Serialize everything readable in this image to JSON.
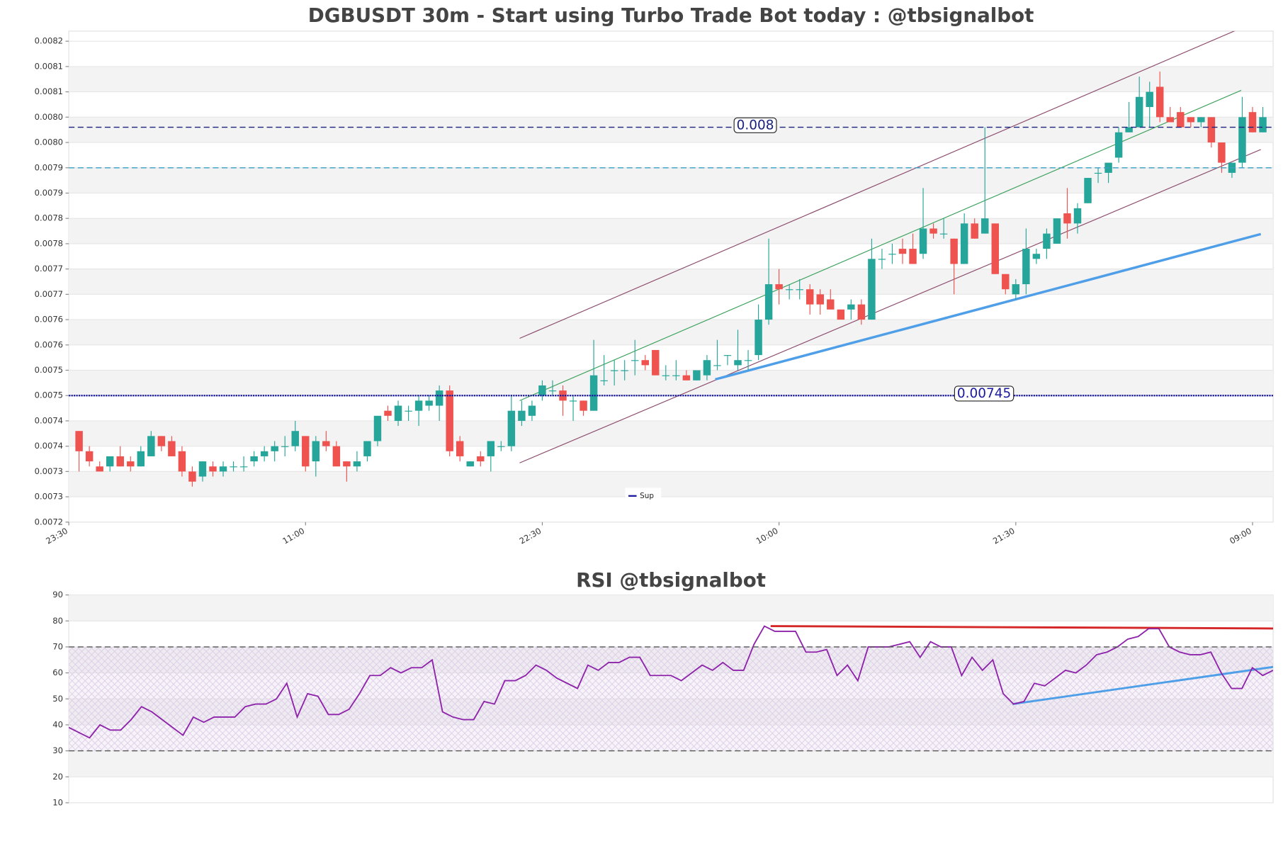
{
  "chart_data": [
    {
      "type": "candlestick",
      "title": "DGBUSDT 30m - Start using Turbo Trade Bot today : @tbsignalbot",
      "x": [
        1,
        2,
        3,
        4,
        5,
        6,
        7,
        8,
        9,
        10,
        11,
        12,
        13,
        14,
        15,
        16,
        17,
        18,
        19,
        20,
        21,
        22,
        23,
        24,
        25,
        26,
        27,
        28,
        29,
        30,
        31,
        32,
        33,
        34,
        35,
        36,
        37,
        38,
        39,
        40,
        41,
        42,
        43,
        44,
        45,
        46,
        47,
        48,
        49,
        50,
        51,
        52,
        53,
        54,
        55,
        56,
        57,
        58,
        59,
        60,
        61,
        62,
        63,
        64,
        65,
        66,
        67,
        68,
        69,
        70,
        71,
        72,
        73,
        74,
        75,
        76,
        77,
        78,
        79,
        80,
        81,
        82,
        83,
        84,
        85,
        86,
        87,
        88,
        89,
        90,
        91,
        92,
        93,
        94,
        95,
        96,
        97,
        98,
        99,
        100,
        101,
        102,
        103,
        104,
        105,
        106,
        107,
        108,
        109,
        110,
        111,
        112,
        113,
        114,
        115,
        116
      ],
      "open": [
        0.00738,
        0.00734,
        0.00731,
        0.00731,
        0.00733,
        0.00732,
        0.00731,
        0.00733,
        0.00737,
        0.00736,
        0.00734,
        0.0073,
        0.00729,
        0.00731,
        0.0073,
        0.00731,
        0.00731,
        0.00732,
        0.00733,
        0.00734,
        0.00735,
        0.00735,
        0.00737,
        0.00732,
        0.00736,
        0.00735,
        0.00732,
        0.00731,
        0.00733,
        0.00736,
        0.00742,
        0.0074,
        0.00742,
        0.00742,
        0.00743,
        0.00743,
        0.00746,
        0.00736,
        0.00731,
        0.00733,
        0.00733,
        0.00735,
        0.00735,
        0.0074,
        0.00741,
        0.00745,
        0.00746,
        0.00746,
        0.00744,
        0.00744,
        0.00742,
        0.00748,
        0.0075,
        0.0075,
        0.00752,
        0.00752,
        0.00754,
        0.00749,
        0.00749,
        0.00749,
        0.00748,
        0.00749,
        0.00751,
        0.00753,
        0.00751,
        0.00752,
        0.00753,
        0.0076,
        0.00767,
        0.00766,
        0.00766,
        0.00766,
        0.00765,
        0.00764,
        0.00762,
        0.00762,
        0.00763,
        0.0076,
        0.00772,
        0.00773,
        0.00774,
        0.00774,
        0.00773,
        0.00778,
        0.00777,
        0.00776,
        0.00771,
        0.00779,
        0.00777,
        0.00779,
        0.00769,
        0.00765,
        0.00767,
        0.00772,
        0.00774,
        0.00775,
        0.00781,
        0.00779,
        0.00783,
        0.00789,
        0.00789,
        0.00792,
        0.00797,
        0.00798,
        0.00802,
        0.00806,
        0.008,
        0.00801,
        0.008,
        0.00799,
        0.008,
        0.00795,
        0.00789,
        0.00791,
        0.00801,
        0.00797
      ],
      "high": [
        0.00738,
        0.00735,
        0.00732,
        0.00733,
        0.00735,
        0.00733,
        0.00735,
        0.00738,
        0.00737,
        0.00737,
        0.00735,
        0.00731,
        0.00732,
        0.00732,
        0.00732,
        0.00732,
        0.00733,
        0.00734,
        0.00735,
        0.00736,
        0.00737,
        0.0074,
        0.00737,
        0.00737,
        0.00738,
        0.00736,
        0.00732,
        0.00734,
        0.00736,
        0.00741,
        0.00743,
        0.00744,
        0.00743,
        0.00745,
        0.00745,
        0.00747,
        0.00747,
        0.00737,
        0.00732,
        0.00734,
        0.00736,
        0.00736,
        0.00745,
        0.00744,
        0.00744,
        0.00748,
        0.00748,
        0.00747,
        0.00745,
        0.00744,
        0.00756,
        0.00753,
        0.00752,
        0.00752,
        0.00756,
        0.00753,
        0.00754,
        0.00751,
        0.00752,
        0.0075,
        0.0075,
        0.00753,
        0.00756,
        0.00753,
        0.00758,
        0.00754,
        0.00763,
        0.00776,
        0.0077,
        0.00767,
        0.00768,
        0.00767,
        0.00766,
        0.00766,
        0.00762,
        0.00764,
        0.00764,
        0.00776,
        0.00774,
        0.00775,
        0.00776,
        0.00777,
        0.00786,
        0.00779,
        0.0078,
        0.00776,
        0.00781,
        0.0078,
        0.00798,
        0.00779,
        0.00769,
        0.00768,
        0.00778,
        0.00774,
        0.00778,
        0.0078,
        0.00786,
        0.00783,
        0.00788,
        0.0079,
        0.00791,
        0.00798,
        0.00803,
        0.00808,
        0.00807,
        0.00809,
        0.00802,
        0.00802,
        0.008,
        0.008,
        0.008,
        0.00795,
        0.00791,
        0.00804,
        0.00802,
        0.00802
      ],
      "low": [
        0.0073,
        0.00731,
        0.0073,
        0.0073,
        0.00731,
        0.0073,
        0.00731,
        0.00733,
        0.00734,
        0.00733,
        0.00729,
        0.00727,
        0.00728,
        0.00729,
        0.00729,
        0.0073,
        0.0073,
        0.00731,
        0.00732,
        0.00732,
        0.00733,
        0.00734,
        0.0073,
        0.00729,
        0.00734,
        0.00731,
        0.00728,
        0.0073,
        0.00732,
        0.00735,
        0.0074,
        0.00739,
        0.0074,
        0.00739,
        0.00742,
        0.0074,
        0.00733,
        0.00732,
        0.00731,
        0.00731,
        0.0073,
        0.00734,
        0.00734,
        0.00739,
        0.0074,
        0.00744,
        0.00745,
        0.00741,
        0.0074,
        0.00741,
        0.00742,
        0.00747,
        0.00747,
        0.00748,
        0.00749,
        0.0075,
        0.00749,
        0.00748,
        0.00748,
        0.00748,
        0.00748,
        0.00748,
        0.0075,
        0.00751,
        0.0075,
        0.0075,
        0.00752,
        0.00759,
        0.00763,
        0.00764,
        0.00764,
        0.00761,
        0.00761,
        0.00762,
        0.0076,
        0.0076,
        0.00759,
        0.0076,
        0.0077,
        0.00771,
        0.00771,
        0.00771,
        0.00772,
        0.00776,
        0.00776,
        0.00765,
        0.00771,
        0.00776,
        0.00777,
        0.00769,
        0.00765,
        0.00764,
        0.00765,
        0.00771,
        0.00772,
        0.00775,
        0.00776,
        0.00777,
        0.00783,
        0.00787,
        0.00787,
        0.00791,
        0.00797,
        0.00798,
        0.00798,
        0.00799,
        0.00799,
        0.00798,
        0.00798,
        0.00798,
        0.00794,
        0.00789,
        0.00788,
        0.0079,
        0.00797,
        0.00797
      ],
      "close": [
        0.00734,
        0.00732,
        0.0073,
        0.00733,
        0.00731,
        0.00731,
        0.00734,
        0.00737,
        0.00735,
        0.00733,
        0.0073,
        0.00728,
        0.00732,
        0.0073,
        0.00731,
        0.00731,
        0.00731,
        0.00733,
        0.00734,
        0.00735,
        0.00735,
        0.00738,
        0.00731,
        0.00736,
        0.00735,
        0.00731,
        0.00731,
        0.00732,
        0.00736,
        0.00741,
        0.00741,
        0.00743,
        0.00742,
        0.00744,
        0.00744,
        0.00746,
        0.00734,
        0.00733,
        0.00732,
        0.00732,
        0.00736,
        0.00735,
        0.00742,
        0.00742,
        0.00743,
        0.00747,
        0.00746,
        0.00744,
        0.00744,
        0.00742,
        0.00749,
        0.00748,
        0.0075,
        0.0075,
        0.00752,
        0.00751,
        0.00749,
        0.00749,
        0.00749,
        0.00748,
        0.0075,
        0.00752,
        0.00751,
        0.00753,
        0.00752,
        0.00752,
        0.0076,
        0.00767,
        0.00766,
        0.00766,
        0.00766,
        0.00763,
        0.00763,
        0.00762,
        0.0076,
        0.00763,
        0.0076,
        0.00772,
        0.00772,
        0.00773,
        0.00773,
        0.00771,
        0.00778,
        0.00777,
        0.00777,
        0.00771,
        0.00779,
        0.00776,
        0.0078,
        0.00769,
        0.00766,
        0.00767,
        0.00774,
        0.00773,
        0.00777,
        0.0078,
        0.00779,
        0.00782,
        0.00788,
        0.00789,
        0.00791,
        0.00797,
        0.00798,
        0.00804,
        0.00805,
        0.008,
        0.00799,
        0.00798,
        0.00799,
        0.008,
        0.00795,
        0.00791,
        0.00791,
        0.008,
        0.00797,
        0.008
      ],
      "up_color": "#26a69a",
      "down_color": "#ef5350",
      "xlim": [
        0,
        117
      ],
      "xticks": [
        {
          "value": 0,
          "label": "23:30"
        },
        {
          "value": 23,
          "label": "11:00"
        },
        {
          "value": 46,
          "label": "22:30"
        },
        {
          "value": 69,
          "label": "10:00"
        },
        {
          "value": 92,
          "label": "21:30"
        },
        {
          "value": 115,
          "label": "09:00"
        }
      ],
      "ylim": [
        0.0072,
        0.00817
      ],
      "yticks": [
        0.0072,
        {
          "value": 0.00725,
          "label": "0.0073"
        },
        0.0073,
        {
          "value": 0.00735,
          "label": "0.0074"
        },
        0.0074,
        {
          "value": 0.00745,
          "label": "0.0075"
        },
        0.0075,
        {
          "value": 0.00755,
          "label": "0.0076"
        },
        0.0076,
        {
          "value": 0.00765,
          "label": "0.0077"
        },
        0.0077,
        {
          "value": 0.00775,
          "label": "0.0078"
        },
        0.0078,
        {
          "value": 0.00785,
          "label": "0.0079"
        },
        0.0079,
        {
          "value": 0.00795,
          "label": "0.0080"
        },
        {
          "value": 0.008,
          "label": "0.0080"
        },
        {
          "value": 0.00805,
          "label": "0.0081"
        },
        0.0081,
        {
          "value": 0.00815,
          "label": "0.0082"
        }
      ],
      "hlines": [
        {
          "value": 0.00798,
          "label": "0.008",
          "color": "#1a237e",
          "style": "dashed"
        },
        {
          "value": 0.0079,
          "color": "#3a9fc4",
          "style": "dashed"
        },
        {
          "value": 0.00745,
          "label": "0.00745",
          "name": "Sup",
          "color": "#1a1aa0",
          "style": "dotted"
        }
      ],
      "trendlines": [
        {
          "x": [
            43.8,
            113.9
          ],
          "y": [
            0.007563,
            0.008176
          ],
          "color": "#8b4a6b",
          "width": 1
        },
        {
          "x": [
            43.8,
            115.8
          ],
          "y": [
            0.007317,
            0.007936
          ],
          "color": "#8b4a6b",
          "width": 1
        },
        {
          "x": [
            43.8,
            113.9
          ],
          "y": [
            0.00744,
            0.008053
          ],
          "color": "#3aa05a",
          "width": 1
        },
        {
          "x": [
            62.8,
            115.8
          ],
          "y": [
            0.007482,
            0.007769
          ],
          "color": "#4f9fe8",
          "width": 3
        }
      ],
      "legend": "lower center"
    },
    {
      "type": "line",
      "title": "RSI @tbsignalbot",
      "color": "#8e24aa",
      "values": [
        39,
        37,
        35,
        40,
        38,
        38,
        42,
        47,
        45,
        42,
        39,
        36,
        43,
        41,
        43,
        43,
        43,
        47,
        48,
        48,
        50,
        56,
        43,
        52,
        51,
        44,
        44,
        46,
        52,
        59,
        59,
        62,
        60,
        62,
        62,
        65,
        45,
        43,
        42,
        42,
        49,
        48,
        57,
        57,
        59,
        63,
        61,
        58,
        56,
        54,
        63,
        61,
        64,
        64,
        66,
        66,
        59,
        59,
        59,
        57,
        60,
        63,
        61,
        64,
        61,
        61,
        71,
        78,
        76,
        76,
        76,
        68,
        68,
        69,
        59,
        63,
        57,
        70,
        70,
        70,
        71,
        72,
        66,
        72,
        70,
        70,
        59,
        66,
        61,
        65,
        52,
        48,
        49,
        56,
        55,
        58,
        61,
        60,
        63,
        67,
        68,
        70,
        73,
        74,
        77,
        77,
        70,
        68,
        67,
        67,
        68,
        60,
        54,
        54,
        62,
        59,
        61
      ],
      "xlim": [
        0,
        116
      ],
      "ylim": [
        10,
        90
      ],
      "yticks": [
        10,
        20,
        30,
        40,
        50,
        60,
        70,
        80,
        90
      ],
      "shade": {
        "from": 30,
        "to": 70,
        "color": "#e6dcef"
      },
      "hlines": [
        {
          "value": 70,
          "color": "#555555",
          "style": "dashed"
        },
        {
          "value": 30,
          "color": "#555555",
          "style": "dashed"
        }
      ],
      "trendlines": [
        {
          "x": [
            67.6,
            116
          ],
          "y": [
            78,
            77.1
          ],
          "color": "#d62728",
          "width": 2.5
        },
        {
          "x": [
            90.9,
            116
          ],
          "y": [
            48,
            62.3
          ],
          "color": "#4f9fe8",
          "width": 2.5
        }
      ]
    }
  ]
}
